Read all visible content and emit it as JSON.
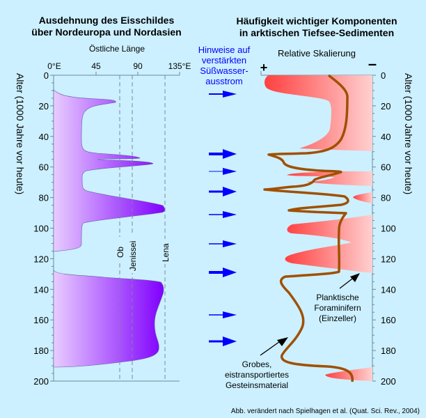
{
  "left_panel": {
    "title_line1": "Ausdehnung des Eisschildes",
    "title_line2": "über Nordeuropa und Nordasien",
    "x_axis_label": "Östliche Länge",
    "x_ticks": [
      "0°E",
      "45",
      "90",
      "135°E"
    ],
    "rivers": [
      "Ob",
      "Jenissei",
      "Lena"
    ],
    "fill_color_light": "#e8ccff",
    "fill_color_dark": "#8000ff"
  },
  "right_panel": {
    "title_line1": "Häufigkeit wichtiger Komponenten",
    "title_line2": "in arktischen Tiefsee-Sedimenten",
    "x_axis_label": "Relative Skalierung",
    "plus_label": "+",
    "minus_label": "–",
    "annotation_foram_line1": "Planktische",
    "annotation_foram_line2": "Foraminifern",
    "annotation_foram_line3": "(Einzeller)",
    "annotation_grobes_line1": "Grobes,",
    "annotation_grobes_line2": "eistransportiertes",
    "annotation_grobes_line3": "Gesteinsmaterial",
    "foram_color": "#ff4040",
    "line_color": "#a05000"
  },
  "arrows_column": {
    "title_line1": "Hinweise auf",
    "title_line2": "verstärkten",
    "title_line3": "Süßwasser-",
    "title_line4": "ausstrom",
    "color": "#0000ff"
  },
  "y_axis": {
    "label": "Alter (1000 Jahre vor heute)",
    "ticks": [
      "0",
      "20",
      "40",
      "60",
      "80",
      "100",
      "120",
      "140",
      "160",
      "180",
      "200"
    ]
  },
  "footer": {
    "credit": "Abb. verändert nach Spielhagen et al. (Quat. Sci. Rev., 2004)"
  }
}
